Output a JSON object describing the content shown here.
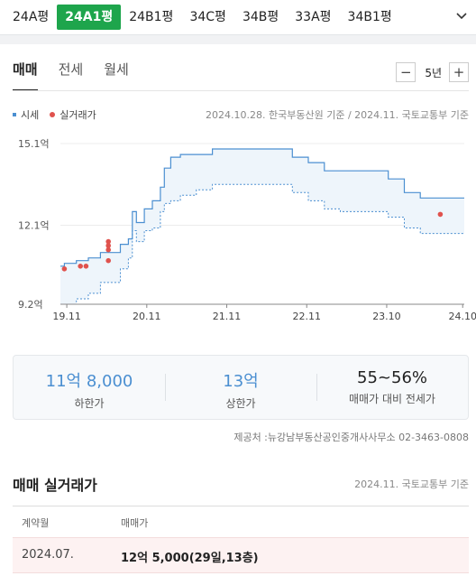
{
  "type_tabs": [
    {
      "label": "24A평",
      "active": false
    },
    {
      "label": "24A1평",
      "active": true
    },
    {
      "label": "24B1평",
      "active": false
    },
    {
      "label": "34C평",
      "active": false
    },
    {
      "label": "34B평",
      "active": false
    },
    {
      "label": "33A평",
      "active": false
    },
    {
      "label": "34B1평",
      "active": false
    }
  ],
  "trade_tabs": [
    {
      "label": "매매",
      "active": true
    },
    {
      "label": "전세",
      "active": false
    },
    {
      "label": "월세",
      "active": false
    }
  ],
  "period": {
    "minus": "−",
    "value": "5년",
    "plus": "+"
  },
  "legend": {
    "market": "시세",
    "actual": "실거래가"
  },
  "chart_source": "2024.10.28. 한국부동산원 기준 / 2024.11. 국토교통부 기준",
  "colors": {
    "accent": "#1ea54c",
    "band_fill": "#eef5fb",
    "band_line": "#4b8fd1",
    "dot": "#e0524d"
  },
  "chart_data": {
    "type": "area",
    "y_ticks": [
      "15.1억",
      "12.1억",
      "9.2억"
    ],
    "x_ticks": [
      "19.11",
      "20.11",
      "21.11",
      "22.11",
      "23.10",
      "24.10"
    ],
    "ylim": [
      9.2,
      15.1
    ],
    "xlim": [
      2019.8,
      2024.85
    ],
    "band": {
      "x": [
        2019.8,
        2019.85,
        2020.0,
        2020.15,
        2020.3,
        2020.55,
        2020.65,
        2020.7,
        2020.75,
        2020.85,
        2020.95,
        2021.05,
        2021.1,
        2021.18,
        2021.3,
        2021.5,
        2021.7,
        2022.0,
        2022.3,
        2022.5,
        2022.7,
        2022.9,
        2023.1,
        2023.3,
        2023.5,
        2023.7,
        2023.9,
        2024.1,
        2024.3,
        2024.5,
        2024.85
      ],
      "upper": [
        10.6,
        10.7,
        10.8,
        10.9,
        11.1,
        11.4,
        11.6,
        12.6,
        12.2,
        12.7,
        13.0,
        13.5,
        14.2,
        14.6,
        14.7,
        14.7,
        14.9,
        14.9,
        14.9,
        14.9,
        14.6,
        14.4,
        14.1,
        14.1,
        14.1,
        14.1,
        13.8,
        13.3,
        13.1,
        13.1,
        13.1
      ],
      "lower": [
        9.2,
        9.2,
        9.4,
        9.6,
        10.0,
        10.5,
        10.9,
        11.9,
        11.5,
        11.9,
        12.0,
        12.6,
        12.9,
        13.0,
        13.2,
        13.4,
        13.6,
        13.6,
        13.6,
        13.6,
        13.3,
        13.0,
        12.7,
        12.6,
        12.6,
        12.6,
        12.4,
        12.0,
        11.8,
        11.8,
        11.8
      ]
    },
    "actual": [
      {
        "x": 2019.85,
        "y": 10.5
      },
      {
        "x": 2020.05,
        "y": 10.6
      },
      {
        "x": 2020.12,
        "y": 10.6
      },
      {
        "x": 2020.4,
        "y": 10.8
      },
      {
        "x": 2020.4,
        "y": 11.2
      },
      {
        "x": 2020.4,
        "y": 11.35
      },
      {
        "x": 2020.4,
        "y": 11.5
      },
      {
        "x": 2024.55,
        "y": 12.5
      }
    ]
  },
  "summary": [
    {
      "value": "11억 8,000",
      "label": "하한가"
    },
    {
      "value": "13억",
      "label": "상한가"
    },
    {
      "value": "55~56%",
      "label": "매매가 대비 전세가"
    }
  ],
  "provider": "제공처 :뉴강남부동산공인중개사사무소 02-3463-0808",
  "deals": {
    "title": "매매 실거래가",
    "source": "2024.11. 국토교통부 기준",
    "headers": [
      "계약월",
      "매매가"
    ],
    "rows": [
      {
        "month": "2024.07.",
        "price": "12억 5,000(29일,13층)"
      }
    ]
  }
}
